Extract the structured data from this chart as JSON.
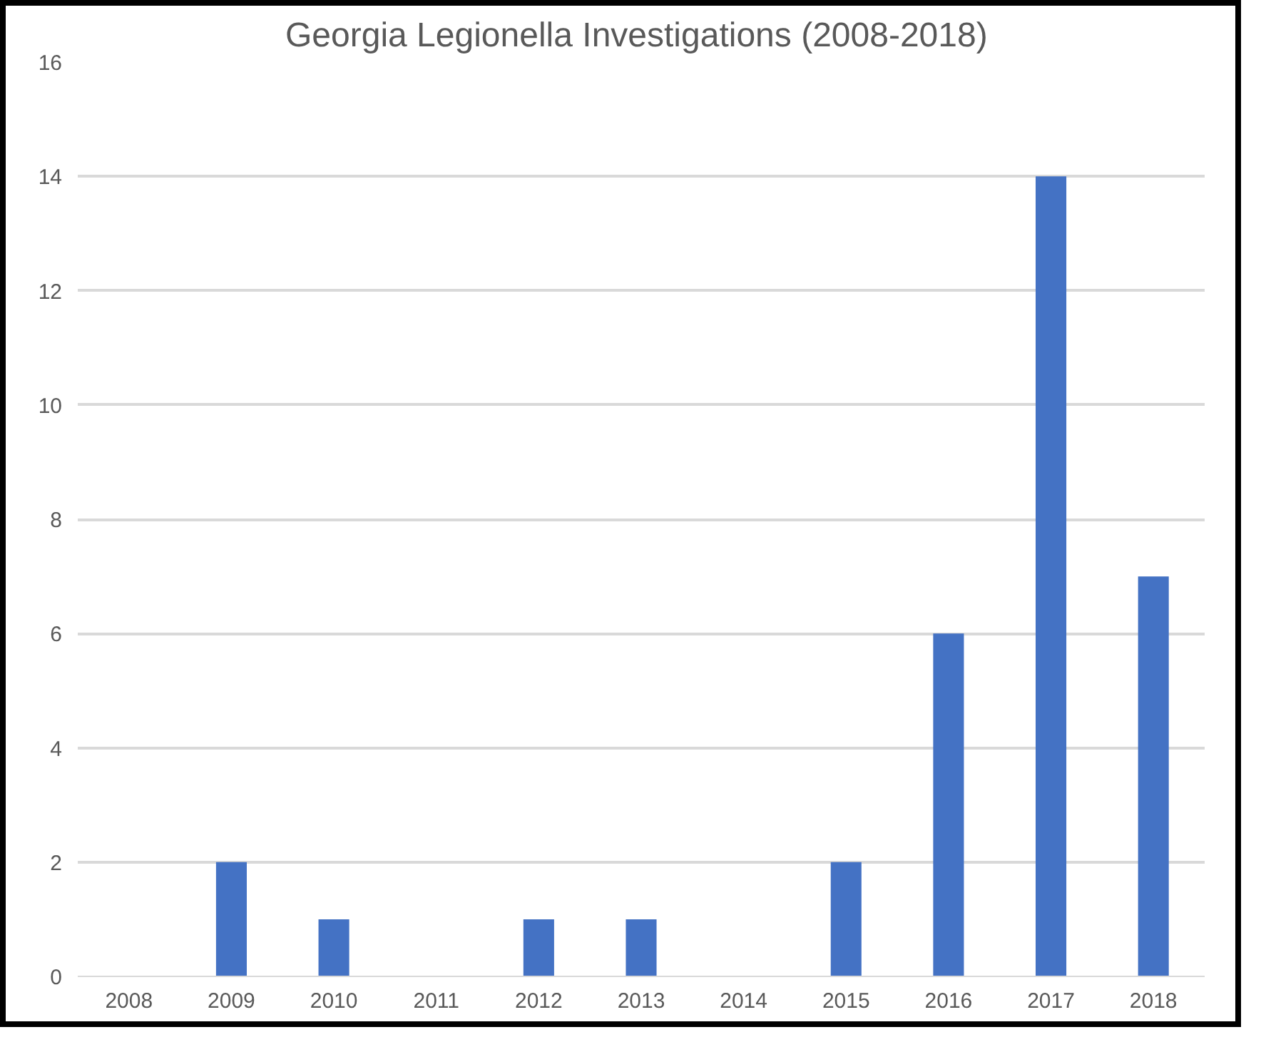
{
  "chart_data": {
    "type": "bar",
    "title": "Georgia Legionella  Investigations (2008-2018)",
    "categories": [
      "2008",
      "2009",
      "2010",
      "2011",
      "2012",
      "2013",
      "2014",
      "2015",
      "2016",
      "2017",
      "2018"
    ],
    "values": [
      0,
      2,
      1,
      0,
      1,
      1,
      0,
      2,
      6,
      14,
      7
    ],
    "color": "#4472c4",
    "ylim": [
      0,
      16
    ],
    "yticks": [
      0,
      2,
      4,
      6,
      8,
      10,
      12,
      14,
      16
    ],
    "grid": "y"
  }
}
